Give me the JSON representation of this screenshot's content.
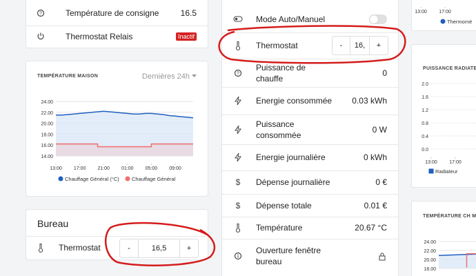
{
  "left": {
    "settings_card": {
      "rows": [
        {
          "label": "Température de consigne",
          "value": "16.5"
        },
        {
          "label": "Thermostat Relais",
          "badge": "Inactif"
        }
      ]
    },
    "chart_card": {
      "title": "TEMPÉRATURE MAISON",
      "range": "Dernières 24h",
      "chart": {
        "type": "line",
        "xlim": [
          0,
          23
        ],
        "ylim": [
          14,
          24
        ],
        "xticks": [
          {
            "value": 0,
            "label": "13:00"
          },
          {
            "value": 4,
            "label": "17:00"
          },
          {
            "value": 8,
            "label": "21:00"
          },
          {
            "value": 12,
            "label": "01:00"
          },
          {
            "value": 16,
            "label": "05:00"
          },
          {
            "value": 20,
            "label": "09:00"
          }
        ],
        "yticks": [
          {
            "value": 24,
            "label": "24.00"
          },
          {
            "value": 22,
            "label": "22.00"
          },
          {
            "value": 20,
            "label": "20.00"
          },
          {
            "value": 18,
            "label": "18.00"
          },
          {
            "value": 16,
            "label": "16.00"
          },
          {
            "value": 14,
            "label": "14.00"
          }
        ],
        "series": [
          {
            "name": "Chauffage Général (°C)",
            "color": "#1f5fbf",
            "area": "#dce8f8",
            "x": [
              0,
              1,
              2,
              3,
              4,
              5,
              6,
              7,
              8,
              9,
              10,
              11,
              12,
              13,
              14,
              15,
              16,
              17,
              18,
              19,
              20,
              21,
              22,
              23
            ],
            "values": [
              21.5,
              21.5,
              21.6,
              21.7,
              21.8,
              21.9,
              22.0,
              22.1,
              22.2,
              22.1,
              22.0,
              21.9,
              21.8,
              21.7,
              21.7,
              21.8,
              21.8,
              21.7,
              21.6,
              21.4,
              21.3,
              21.2,
              21.1,
              21.0
            ]
          },
          {
            "name": "Chauffage Général",
            "color": "#f06e6e",
            "area": "#e8d6df",
            "x": [
              0,
              7,
              7,
              16,
              16,
              23
            ],
            "values": [
              16.2,
              16.2,
              15.7,
              15.7,
              16.2,
              16.2
            ]
          }
        ]
      }
    },
    "bureau_card": {
      "title": "Bureau",
      "row": {
        "label": "Thermostat",
        "minus": "-",
        "value": "16,5",
        "plus": "+"
      }
    }
  },
  "middle": {
    "rows": [
      {
        "label": "Mode Auto/Manuel"
      },
      {
        "label": "Thermostat",
        "minus": "-",
        "value": "16,",
        "plus": "+"
      },
      {
        "label": "Puissance de chauffe",
        "value": "0"
      },
      {
        "label": "Energie consommée",
        "value": "0.03 kWh"
      },
      {
        "label": "Puissance consommée",
        "value": "0 W"
      },
      {
        "label": "Energie journalière",
        "value": "0 kWh"
      },
      {
        "label": "Dépense journalière",
        "value": "0 €"
      },
      {
        "label": "Dépense totale",
        "value": "0.01 €"
      },
      {
        "label": "Température",
        "value": "20.67 °C"
      },
      {
        "label": "Ouverture fenêtre bureau"
      }
    ]
  },
  "right": {
    "top_chart": {
      "type": "line",
      "xlim": [
        0,
        8
      ],
      "xticks": [
        {
          "value": 0,
          "label": "13:00"
        },
        {
          "value": 4,
          "label": "17:00"
        }
      ],
      "series": [
        {
          "name": "Thermomè",
          "color": "#1f5fbf",
          "x": [],
          "values": []
        }
      ]
    },
    "power_card": {
      "title": "PUISSANCE RADIATEUR",
      "chart": {
        "type": "line",
        "xlim": [
          0,
          8
        ],
        "ylim": [
          0,
          2
        ],
        "xticks": [
          {
            "value": 0,
            "label": "13:00"
          },
          {
            "value": 4,
            "label": "17:00"
          }
        ],
        "yticks": [
          {
            "value": 2,
            "label": "2.0"
          },
          {
            "value": 1.6,
            "label": "1.6"
          },
          {
            "value": 1.2,
            "label": "1.2"
          },
          {
            "value": 0.8,
            "label": "0.8"
          },
          {
            "value": 0.4,
            "label": "0.4"
          },
          {
            "value": 0,
            "label": "0.0"
          }
        ],
        "series": [
          {
            "name": "Radiateur",
            "color": "#1f5fbf",
            "x": [],
            "values": []
          }
        ]
      }
    },
    "math_card": {
      "title": "TEMPÉRATURE CH MATH",
      "chart": {
        "type": "line",
        "xlim": [
          0,
          8
        ],
        "ylim": [
          18,
          24
        ],
        "yticks": [
          {
            "value": 24,
            "label": "24.00"
          },
          {
            "value": 22,
            "label": "22.00"
          },
          {
            "value": 20,
            "label": "20.00"
          },
          {
            "value": 18,
            "label": "18.00"
          }
        ],
        "series": [
          {
            "color": "#1f5fbf",
            "area": "#dce8f8",
            "x": [
              0,
              8
            ],
            "values": [
              20.9,
              21.2
            ]
          },
          {
            "color": "#f06e6e",
            "x": [
              6,
              6,
              8
            ],
            "values": [
              18.2,
              21.3,
              21.3
            ]
          }
        ]
      }
    }
  }
}
